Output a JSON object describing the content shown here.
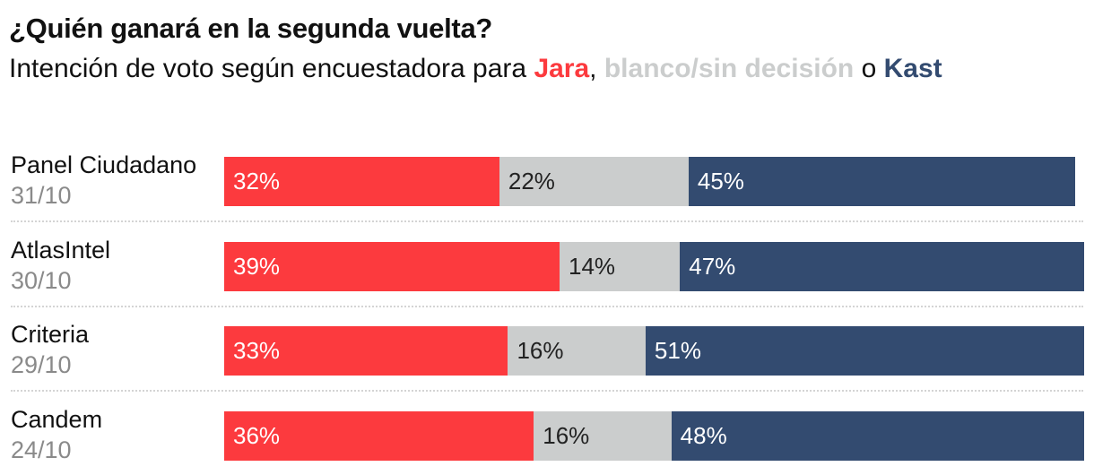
{
  "title": "¿Quién ganará en la segunda vuelta?",
  "subtitle": {
    "prefix": "Intención de voto según encuestadora para ",
    "jara": "Jara",
    "sep1": ", ",
    "blank": "blanco/sin decisión",
    "sep2": " o ",
    "kast": "Kast"
  },
  "colors": {
    "jara": "#fc3a3e",
    "blank": "#cbcdcd",
    "kast": "#334b70",
    "label_on_dark": "#ffffff",
    "label_on_light": "#222222"
  },
  "chart_data": {
    "type": "bar",
    "orientation": "horizontal",
    "stacked": true,
    "unit": "%",
    "categories": [
      "Panel Ciudadano",
      "AtlasIntel",
      "Criteria",
      "Candem"
    ],
    "dates": [
      "31/10",
      "30/10",
      "29/10",
      "24/10"
    ],
    "series": [
      {
        "name": "Jara",
        "key": "jara",
        "values": [
          32,
          39,
          33,
          36
        ]
      },
      {
        "name": "blanco/sin decisión",
        "key": "blank",
        "values": [
          22,
          14,
          16,
          16
        ]
      },
      {
        "name": "Kast",
        "key": "kast",
        "values": [
          45,
          47,
          51,
          48
        ]
      }
    ],
    "xlim": [
      0,
      100
    ],
    "title": "¿Quién ganará en la segunda vuelta?",
    "xlabel": "",
    "ylabel": ""
  }
}
